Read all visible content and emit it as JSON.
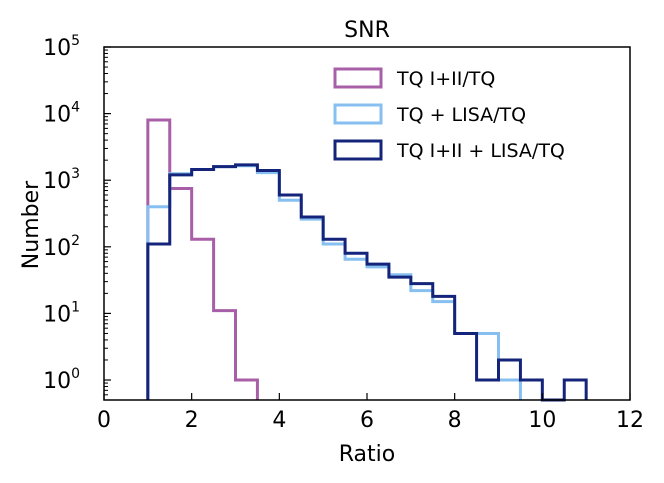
{
  "chart_data": {
    "type": "histogram",
    "title": "SNR",
    "xlabel": "Ratio",
    "ylabel": "Number",
    "xlim": [
      0,
      12
    ],
    "ylim_exp": [
      -0.3,
      5
    ],
    "yscale": "log",
    "xticks": [
      "0",
      "2",
      "4",
      "6",
      "8",
      "10",
      "12"
    ],
    "xtick_values": [
      0,
      2,
      4,
      6,
      8,
      10,
      12
    ],
    "yticks": [
      {
        "base": "10",
        "exp": "0",
        "value": 0
      },
      {
        "base": "10",
        "exp": "1",
        "value": 1
      },
      {
        "base": "10",
        "exp": "2",
        "value": 2
      },
      {
        "base": "10",
        "exp": "3",
        "value": 3
      },
      {
        "base": "10",
        "exp": "4",
        "value": 4
      },
      {
        "base": "10",
        "exp": "5",
        "value": 5
      }
    ],
    "bin_width": 0.5,
    "series": [
      {
        "name": "TQ I+II/TQ",
        "color": "#a85fa8",
        "bin_start": 1.0,
        "values": [
          8000,
          750,
          130,
          11,
          1
        ]
      },
      {
        "name": "TQ + LISA/TQ",
        "color": "#86bff0",
        "bin_start": 1.0,
        "values": [
          400,
          1250,
          1450,
          1600,
          1650,
          1300,
          500,
          260,
          110,
          65,
          50,
          38,
          22,
          15,
          5,
          5,
          1
        ]
      },
      {
        "name": "TQ I+II + LISA/TQ",
        "color": "#14247a",
        "bin_start": 1.0,
        "values": [
          110,
          1200,
          1450,
          1600,
          1700,
          1400,
          600,
          280,
          130,
          80,
          55,
          35,
          28,
          18,
          5,
          1,
          2,
          1,
          0,
          1
        ]
      }
    ],
    "legend_position": "top-right"
  }
}
